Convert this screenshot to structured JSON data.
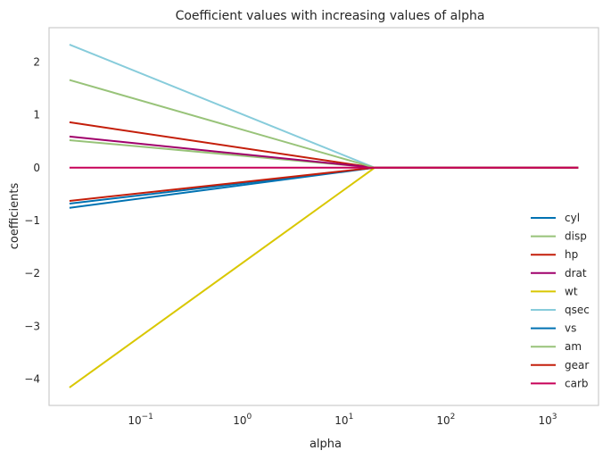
{
  "chart_data": {
    "type": "line",
    "title": "Coefficient values with increasing values of alpha",
    "xlabel": "alpha",
    "ylabel": "coefficients",
    "xscale": "log",
    "xlim": [
      0.0126,
      3162
    ],
    "ylim": [
      -4.5,
      2.65
    ],
    "x": [
      0.02,
      20,
      2000
    ],
    "xtick_labels": [
      {
        "base": "10",
        "exp": "−1",
        "value": 0.1
      },
      {
        "base": "10",
        "exp": "0",
        "value": 1
      },
      {
        "base": "10",
        "exp": "1",
        "value": 10
      },
      {
        "base": "10",
        "exp": "2",
        "value": 100
      },
      {
        "base": "10",
        "exp": "3",
        "value": 1000
      }
    ],
    "yticks": [
      2,
      1,
      0,
      -1,
      -2,
      -3,
      -4
    ],
    "ytick_labels": [
      "2",
      "1",
      "0",
      "−1",
      "−2",
      "−3",
      "−4"
    ],
    "grid": false,
    "legend_position": "lower-right",
    "series": [
      {
        "name": "cyl",
        "color": "#0072B2",
        "values": [
          -0.68,
          0,
          0
        ]
      },
      {
        "name": "disp",
        "color": "#98C379",
        "values": [
          0.52,
          0,
          0
        ]
      },
      {
        "name": "hp",
        "color": "#C41E0A",
        "values": [
          0.86,
          0,
          0
        ]
      },
      {
        "name": "drat",
        "color": "#A0006B",
        "values": [
          0.59,
          0,
          0
        ]
      },
      {
        "name": "wt",
        "color": "#D9C700",
        "values": [
          -4.16,
          0,
          0
        ]
      },
      {
        "name": "qsec",
        "color": "#87CCDB",
        "values": [
          2.33,
          0,
          0
        ]
      },
      {
        "name": "vs",
        "color": "#0072B2",
        "values": [
          -0.76,
          0,
          0
        ]
      },
      {
        "name": "am",
        "color": "#98C379",
        "values": [
          1.66,
          0,
          0
        ]
      },
      {
        "name": "gear",
        "color": "#C41E0A",
        "values": [
          -0.63,
          0,
          0
        ]
      },
      {
        "name": "carb",
        "color": "#C70058",
        "values": [
          0.0,
          0,
          0
        ]
      }
    ]
  }
}
